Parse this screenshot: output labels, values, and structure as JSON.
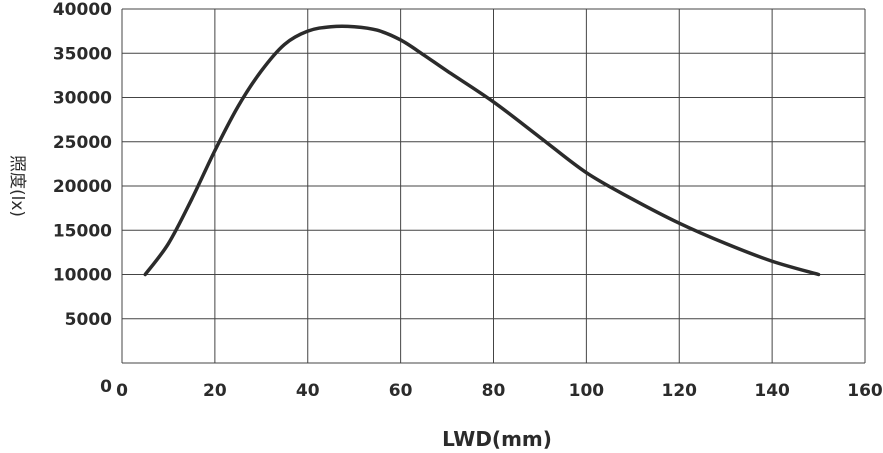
{
  "chart_data": {
    "type": "line",
    "xlabel": "LWD(mm)",
    "ylabel": "照度(lx)",
    "xlim": [
      0,
      160
    ],
    "ylim": [
      0,
      40000
    ],
    "x_ticks": [
      "0",
      "20",
      "40",
      "60",
      "80",
      "100",
      "120",
      "140",
      "160"
    ],
    "y_ticks": [
      "0",
      "5000",
      "10000",
      "15000",
      "20000",
      "25000",
      "30000",
      "35000",
      "40000"
    ],
    "grid": true,
    "color": "#2b2b2b",
    "series": [
      {
        "x": [
          5,
          10,
          15,
          20,
          25,
          30,
          35,
          40,
          45,
          50,
          55,
          60,
          65,
          70,
          80,
          90,
          100,
          110,
          120,
          130,
          140,
          150
        ],
        "y": [
          10000,
          13500,
          18500,
          24000,
          29000,
          33000,
          36000,
          37500,
          38000,
          38000,
          37600,
          36500,
          34800,
          33000,
          29500,
          25500,
          21500,
          18500,
          15800,
          13500,
          11500,
          10000
        ]
      }
    ]
  }
}
